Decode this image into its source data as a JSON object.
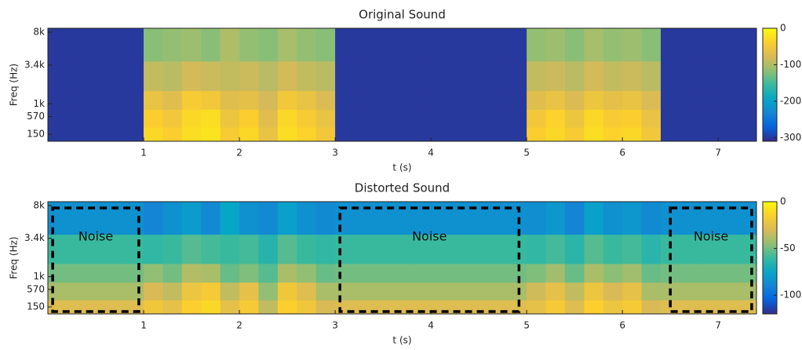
{
  "chart_data": [
    {
      "type": "heatmap",
      "title": "Original Sound",
      "xlabel": "t (s)",
      "ylabel": "Freq (Hz)",
      "xlim": [
        0,
        7.4
      ],
      "xticks": [
        1,
        2,
        3,
        4,
        5,
        6,
        7
      ],
      "ylim": [
        24,
        8800
      ],
      "yscale": "mel",
      "yticks": [
        150,
        570,
        {
          "value": 1000,
          "label": "1k"
        },
        {
          "value": 3400,
          "label": "3.4k"
        },
        {
          "value": 8000,
          "label": "8k"
        }
      ],
      "xbins": [
        0,
        0.2,
        0.4,
        0.6,
        0.8,
        1,
        1.2,
        1.4,
        1.6,
        1.8,
        2,
        2.2,
        2.4,
        2.6,
        2.8,
        3,
        3.2,
        3.4,
        3.6,
        3.8,
        4,
        4.2,
        4.4,
        4.6,
        4.8,
        5,
        5.2,
        5.4,
        5.6,
        5.8,
        6,
        6.2,
        6.4,
        6.6,
        6.8,
        7,
        7.2,
        7.4
      ],
      "ybins": [
        24,
        300,
        800,
        1600,
        3800,
        8800
      ],
      "values": [
        [
          -300,
          -300,
          -300,
          -300,
          -300,
          -30,
          -40,
          -25,
          -20,
          -45,
          -30,
          -60,
          -25,
          -35,
          -50,
          -300,
          -300,
          -300,
          -300,
          -300,
          -300,
          -300,
          -300,
          -300,
          -300,
          -40,
          -30,
          -45,
          -25,
          -35,
          -30,
          -50,
          -300,
          -300,
          -300,
          -300,
          -300
        ],
        [
          -300,
          -300,
          -300,
          -300,
          -300,
          -40,
          -50,
          -30,
          -25,
          -55,
          -40,
          -70,
          -30,
          -45,
          -60,
          -300,
          -300,
          -300,
          -300,
          -300,
          -300,
          -300,
          -300,
          -300,
          -300,
          -50,
          -35,
          -55,
          -30,
          -45,
          -40,
          -60,
          -300,
          -300,
          -300,
          -300,
          -300
        ],
        [
          -300,
          -300,
          -300,
          -300,
          -300,
          -60,
          -70,
          -45,
          -50,
          -70,
          -65,
          -80,
          -50,
          -60,
          -75,
          -300,
          -300,
          -300,
          -300,
          -300,
          -300,
          -300,
          -300,
          -300,
          -300,
          -70,
          -60,
          -75,
          -55,
          -65,
          -60,
          -75,
          -300,
          -300,
          -300,
          -300,
          -300
        ],
        [
          -300,
          -300,
          -300,
          -300,
          -300,
          -90,
          -95,
          -80,
          -85,
          -90,
          -85,
          -95,
          -80,
          -90,
          -95,
          -300,
          -300,
          -300,
          -300,
          -300,
          -300,
          -300,
          -300,
          -300,
          -300,
          -90,
          -85,
          -95,
          -80,
          -90,
          -85,
          -95,
          -300,
          -300,
          -300,
          -300,
          -300
        ],
        [
          -300,
          -300,
          -300,
          -300,
          -300,
          -120,
          -115,
          -110,
          -120,
          -100,
          -115,
          -120,
          -105,
          -115,
          -120,
          -300,
          -300,
          -300,
          -300,
          -300,
          -300,
          -300,
          -300,
          -300,
          -300,
          -115,
          -110,
          -120,
          -105,
          -115,
          -110,
          -120,
          -300,
          -300,
          -300,
          -300,
          -300
        ]
      ],
      "colormap": "parula",
      "clim": [
        -310,
        0
      ],
      "cticks": [
        0,
        -100,
        -200,
        -300
      ]
    },
    {
      "type": "heatmap",
      "title": "Distorted Sound",
      "xlabel": "t (s)",
      "ylabel": "Freq (Hz)",
      "xlim": [
        0,
        7.4
      ],
      "xticks": [
        1,
        2,
        3,
        4,
        5,
        6,
        7
      ],
      "ylim": [
        24,
        8800
      ],
      "yscale": "mel",
      "yticks": [
        150,
        570,
        {
          "value": 1000,
          "label": "1k"
        },
        {
          "value": 3400,
          "label": "3.4k"
        },
        {
          "value": 8000,
          "label": "8k"
        }
      ],
      "xbins": [
        0,
        0.2,
        0.4,
        0.6,
        0.8,
        1,
        1.2,
        1.4,
        1.6,
        1.8,
        2,
        2.2,
        2.4,
        2.6,
        2.8,
        3,
        3.2,
        3.4,
        3.6,
        3.8,
        4,
        4.2,
        4.4,
        4.6,
        4.8,
        5,
        5.2,
        5.4,
        5.6,
        5.8,
        6,
        6.2,
        6.4,
        6.6,
        6.8,
        7,
        7.2,
        7.4
      ],
      "ybins": [
        24,
        300,
        800,
        1600,
        3800,
        8800
      ],
      "values": [
        [
          -28,
          -28,
          -28,
          -28,
          -28,
          -20,
          -25,
          -15,
          -12,
          -25,
          -18,
          -35,
          -15,
          -20,
          -30,
          -28,
          -28,
          -28,
          -28,
          -28,
          -28,
          -28,
          -28,
          -28,
          -28,
          -25,
          -18,
          -28,
          -15,
          -22,
          -18,
          -30,
          -28,
          -28,
          -28,
          -28,
          -28
        ],
        [
          -40,
          -40,
          -40,
          -40,
          -40,
          -30,
          -35,
          -22,
          -18,
          -35,
          -25,
          -45,
          -20,
          -28,
          -40,
          -40,
          -40,
          -40,
          -40,
          -40,
          -40,
          -40,
          -40,
          -40,
          -40,
          -32,
          -25,
          -35,
          -22,
          -30,
          -25,
          -40,
          -40,
          -40,
          -40,
          -40,
          -40
        ],
        [
          -50,
          -50,
          -50,
          -50,
          -50,
          -45,
          -50,
          -38,
          -40,
          -52,
          -48,
          -55,
          -40,
          -45,
          -52,
          -50,
          -50,
          -50,
          -50,
          -50,
          -50,
          -50,
          -50,
          -50,
          -50,
          -48,
          -42,
          -52,
          -40,
          -46,
          -42,
          -52,
          -50,
          -50,
          -50,
          -50,
          -50
        ],
        [
          -60,
          -60,
          -60,
          -60,
          -60,
          -62,
          -60,
          -55,
          -58,
          -60,
          -58,
          -65,
          -55,
          -60,
          -62,
          -60,
          -60,
          -60,
          -60,
          -60,
          -60,
          -60,
          -60,
          -60,
          -60,
          -62,
          -58,
          -64,
          -55,
          -60,
          -58,
          -64,
          -60,
          -60,
          -60,
          -60,
          -60
        ],
        [
          -85,
          -85,
          -85,
          -85,
          -85,
          -90,
          -85,
          -80,
          -88,
          -75,
          -85,
          -88,
          -78,
          -85,
          -88,
          -85,
          -85,
          -85,
          -85,
          -85,
          -85,
          -85,
          -85,
          -85,
          -85,
          -86,
          -82,
          -90,
          -78,
          -85,
          -82,
          -88,
          -85,
          -85,
          -85,
          -85,
          -85
        ]
      ],
      "colormap": "parula",
      "clim": [
        -120,
        0
      ],
      "cticks": [
        0,
        -50,
        -100
      ],
      "annotations": [
        {
          "text": "Noise",
          "xrange": [
            0.05,
            0.95
          ]
        },
        {
          "text": "Noise",
          "xrange": [
            3.05,
            4.92
          ]
        },
        {
          "text": "Noise",
          "xrange": [
            6.5,
            7.35
          ]
        }
      ]
    }
  ]
}
